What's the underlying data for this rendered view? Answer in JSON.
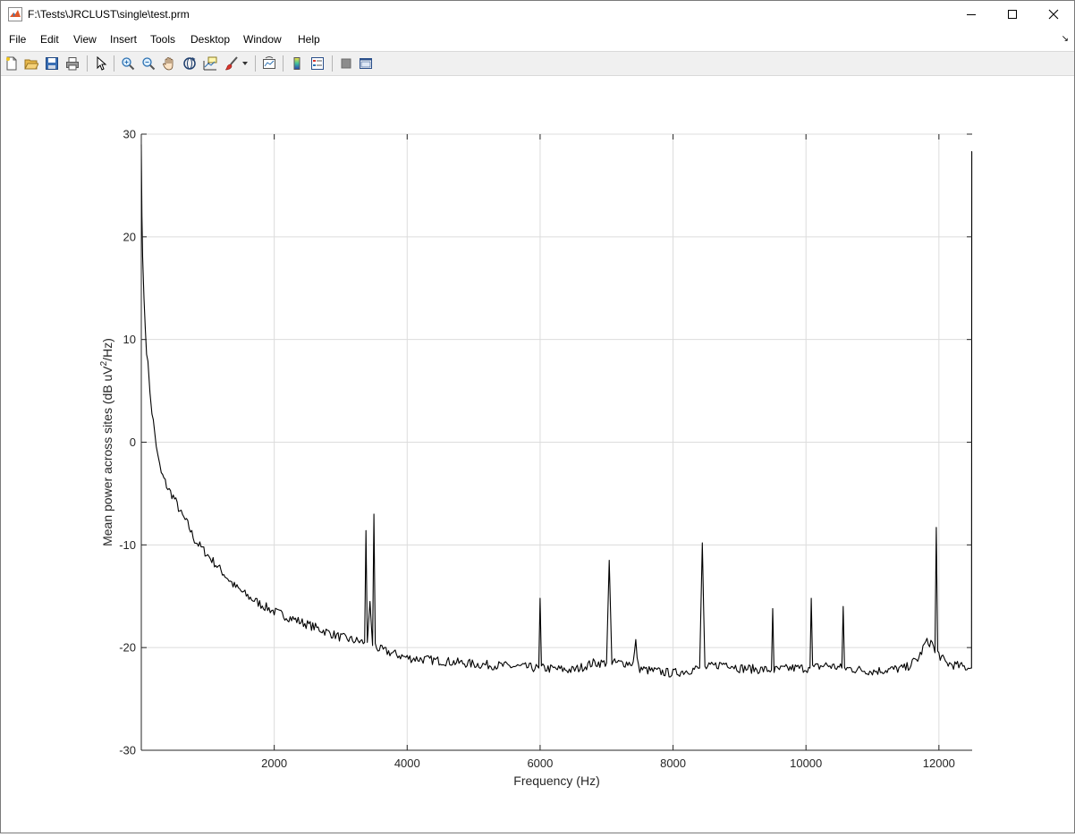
{
  "window": {
    "title": "F:\\Tests\\JRCLUST\\single\\test.prm"
  },
  "menu": {
    "items": [
      "File",
      "Edit",
      "View",
      "Insert",
      "Tools",
      "Desktop",
      "Window",
      "Help"
    ]
  },
  "toolbar": {
    "icons": [
      "new-figure-icon",
      "open-file-icon",
      "save-icon",
      "print-icon",
      "pointer-icon",
      "zoom-in-icon",
      "zoom-out-icon",
      "pan-hand-icon",
      "rotate-3d-icon",
      "data-cursor-icon",
      "brush-icon",
      "dropdown-arrow-icon",
      "link-plot-icon",
      "colorbar-icon",
      "legend-icon",
      "hide-plot-tools-icon",
      "show-plot-tools-icon"
    ]
  },
  "colors": {
    "line": "#000000",
    "grid": "#dcdcdc",
    "axis": "#262626",
    "background": "#ffffff"
  },
  "chart_data": {
    "type": "line",
    "title": "",
    "xlabel": "Frequency (Hz)",
    "ylabel_prefix": "Mean power across sites (dB uV",
    "ylabel_sup": "2",
    "ylabel_suffix": "/Hz)",
    "xlim": [
      0,
      12500
    ],
    "ylim": [
      -30,
      30
    ],
    "xticks": [
      2000,
      4000,
      6000,
      8000,
      10000,
      12000
    ],
    "yticks": [
      -30,
      -20,
      -10,
      0,
      10,
      20,
      30
    ],
    "grid": true,
    "series": [
      {
        "x": [
          0,
          10,
          20,
          40,
          60,
          80,
          100,
          130,
          160,
          200,
          250,
          300,
          400,
          500,
          600,
          700,
          800,
          1000,
          1200,
          1400,
          1600,
          1800,
          2000,
          2200,
          2400,
          2600,
          2800,
          3000,
          3200,
          3360,
          3380,
          3400,
          3440,
          3480,
          3500,
          3520,
          3540,
          3600,
          3800,
          4000,
          4500,
          5000,
          5500,
          5980,
          6000,
          6020,
          6500,
          6800,
          7000,
          7040,
          7080,
          7200,
          7400,
          7440,
          7480,
          7600,
          8000,
          8400,
          8440,
          8480,
          8800,
          9000,
          9480,
          9500,
          9520,
          9800,
          10060,
          10080,
          10100,
          10300,
          10540,
          10560,
          10580,
          11000,
          11500,
          11700,
          11800,
          11900,
          11940,
          11960,
          11980,
          12100,
          12300,
          12480,
          12490,
          12495,
          12500
        ],
        "y": [
          29,
          22,
          18,
          14,
          11,
          9,
          7.5,
          5,
          3,
          1,
          -1.5,
          -3,
          -4.5,
          -5.5,
          -7,
          -8,
          -9.5,
          -11,
          -12.5,
          -14,
          -15,
          -15.8,
          -16.5,
          -17,
          -17.5,
          -18,
          -18.5,
          -19,
          -19.3,
          -19.5,
          -8.6,
          -19.5,
          -15.5,
          -19.8,
          -7,
          -19.8,
          -20,
          -20.2,
          -20.6,
          -21,
          -21.3,
          -21.6,
          -21.8,
          -22,
          -15.2,
          -22,
          -22.2,
          -21.5,
          -21.5,
          -11.5,
          -21.5,
          -21.5,
          -21.5,
          -19.5,
          -22,
          -22.2,
          -22.5,
          -22,
          -9.8,
          -22,
          -21.5,
          -22,
          -22.2,
          -16.2,
          -22.2,
          -22,
          -22,
          -15.2,
          -22,
          -21.7,
          -22,
          -16,
          -22,
          -22.3,
          -22,
          -21,
          -19.5,
          -19.5,
          -20.5,
          -8.3,
          -20.5,
          -21.5,
          -21.8,
          -22,
          -22,
          28.3,
          28.3
        ]
      }
    ]
  }
}
